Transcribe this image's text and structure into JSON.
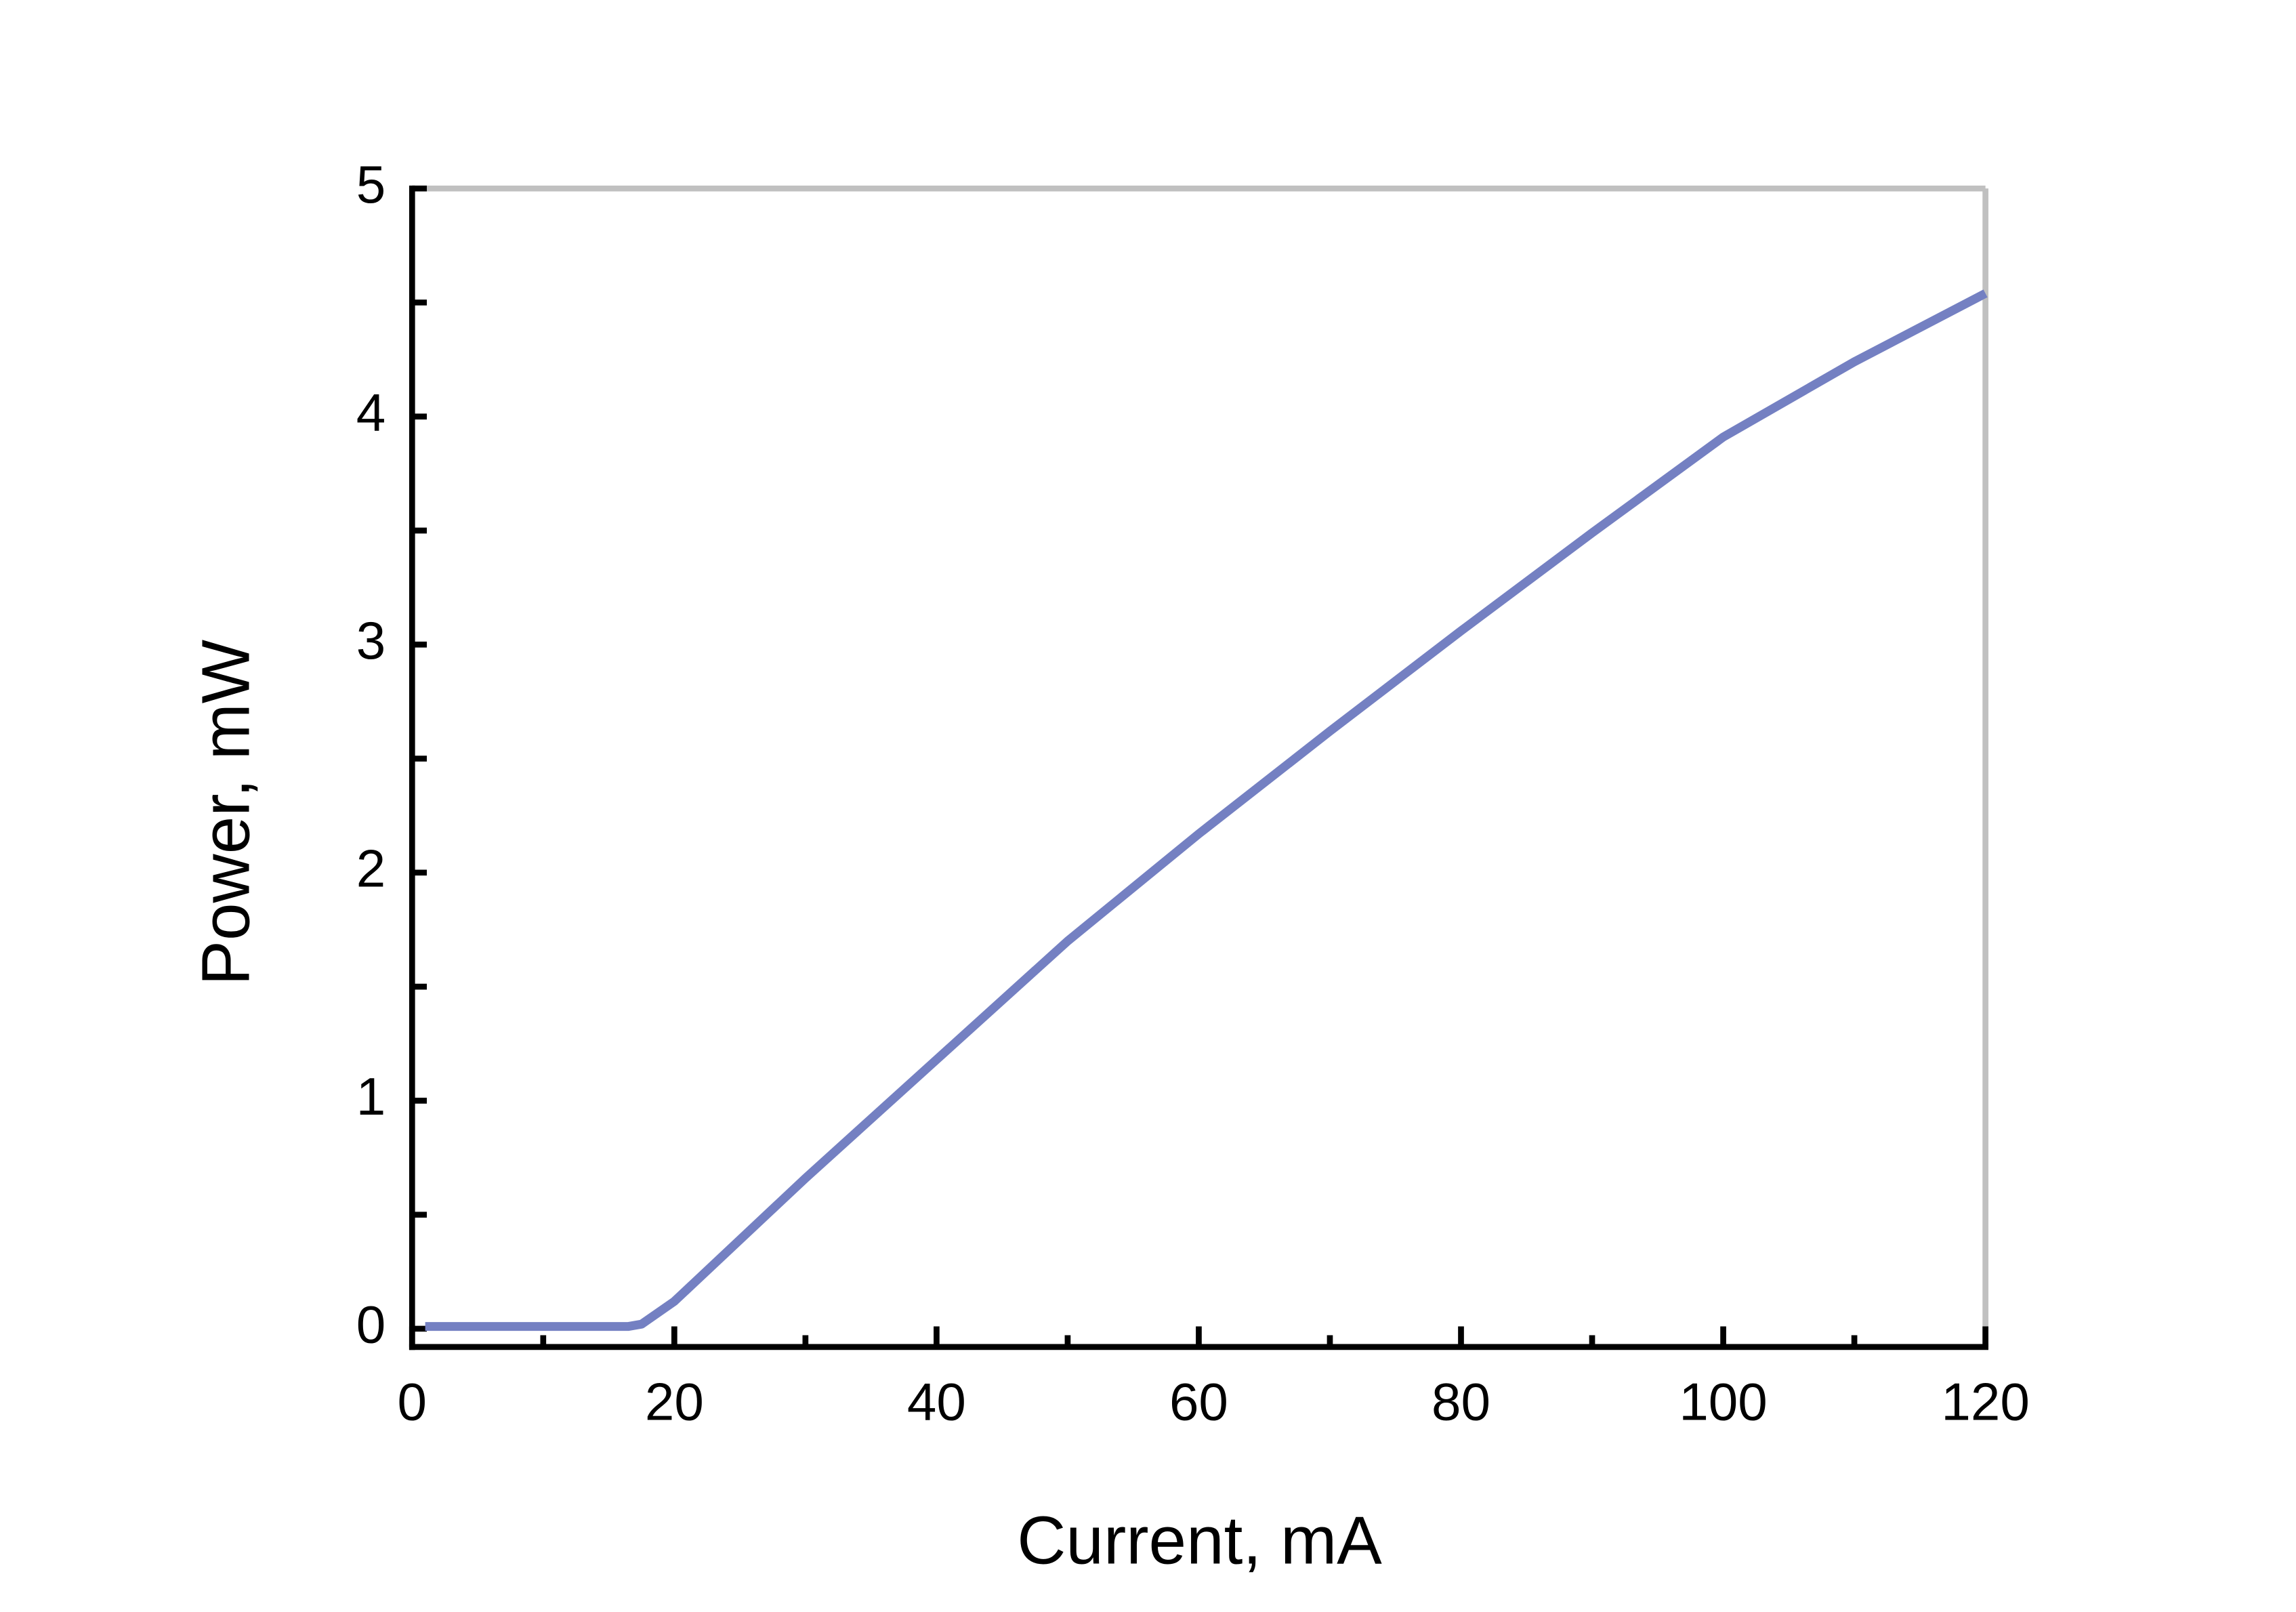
{
  "chart_data": {
    "type": "line",
    "x_label": "Current, mA",
    "y_label": "Power, mW",
    "x": [
      1,
      5,
      10,
      15,
      16.5,
      17.5,
      20,
      30,
      40,
      50,
      60,
      70,
      80,
      90,
      100,
      110,
      120
    ],
    "series": [
      {
        "name": "Power",
        "color": "#7480c2",
        "values": [
          0.01,
          0.01,
          0.01,
          0.01,
          0.01,
          0.02,
          0.12,
          0.66,
          1.18,
          1.7,
          2.17,
          2.62,
          3.06,
          3.49,
          3.91,
          4.24,
          4.54
        ]
      }
    ],
    "xlim": [
      0,
      120
    ],
    "xticks": [
      0,
      20,
      40,
      60,
      80,
      100,
      120
    ],
    "xminorticks": [
      10,
      30,
      50,
      70,
      90,
      110
    ],
    "ylim": [
      -0.08,
      5
    ],
    "yticks": [
      0,
      1,
      2,
      3,
      4,
      5
    ],
    "yminorticks": [
      0.5,
      1.5,
      2.5,
      3.5,
      4.5
    ],
    "grid": false
  }
}
